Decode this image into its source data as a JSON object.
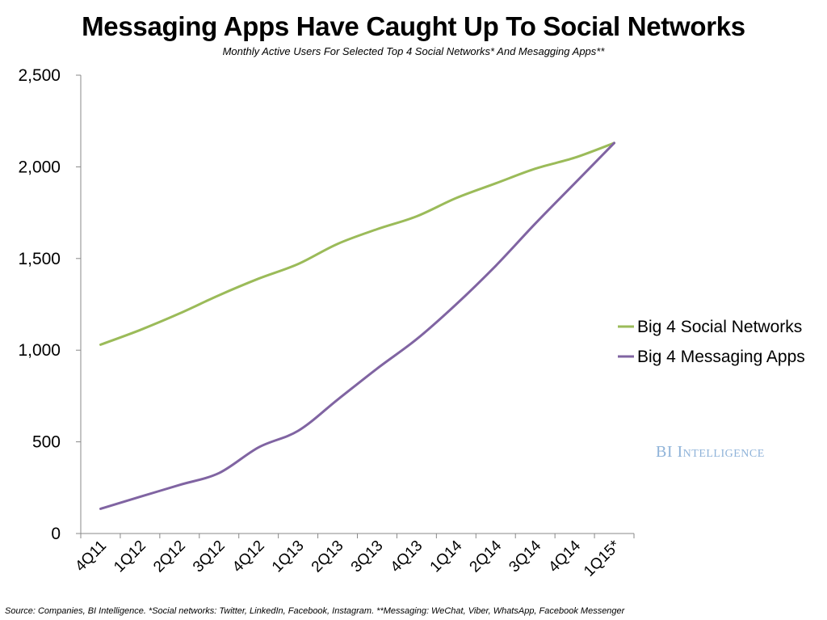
{
  "chart_data": {
    "type": "line",
    "title": "Messaging Apps Have Caught Up To Social Networks",
    "subtitle": "Monthly Active Users For Selected Top 4 Social Networks* And Mesagging Apps**",
    "categories": [
      "4Q11",
      "1Q12",
      "2Q12",
      "3Q12",
      "4Q12",
      "1Q13",
      "2Q13",
      "3Q13",
      "4Q13",
      "1Q14",
      "2Q14",
      "3Q14",
      "4Q14",
      "1Q15*"
    ],
    "series": [
      {
        "name": "Big 4 Social Networks",
        "color": "#9bbb59",
        "values": [
          1030,
          1110,
          1200,
          1300,
          1390,
          1470,
          1580,
          1660,
          1730,
          1830,
          1910,
          1990,
          2050,
          2130
        ]
      },
      {
        "name": "Big 4 Messaging Apps",
        "color": "#8064a2",
        "values": [
          135,
          200,
          265,
          330,
          470,
          560,
          730,
          900,
          1060,
          1250,
          1460,
          1690,
          1910,
          2130
        ]
      }
    ],
    "ylim": [
      0,
      2500
    ],
    "yticks": [
      "0",
      "500",
      "1,000",
      "1,500",
      "2,000",
      "2,500"
    ],
    "ytick_values": [
      0,
      500,
      1000,
      1500,
      2000,
      2500
    ],
    "xlabel": "",
    "ylabel": "",
    "grid": false,
    "legend_position": "right"
  },
  "brand": {
    "prefix": "BI",
    "name": "Intelligence"
  },
  "source": "Source: Companies, BI Intelligence. *Social networks: Twitter, LinkedIn, Facebook, Instagram. **Messaging: WeChat, Viber, WhatsApp, Facebook Messenger"
}
